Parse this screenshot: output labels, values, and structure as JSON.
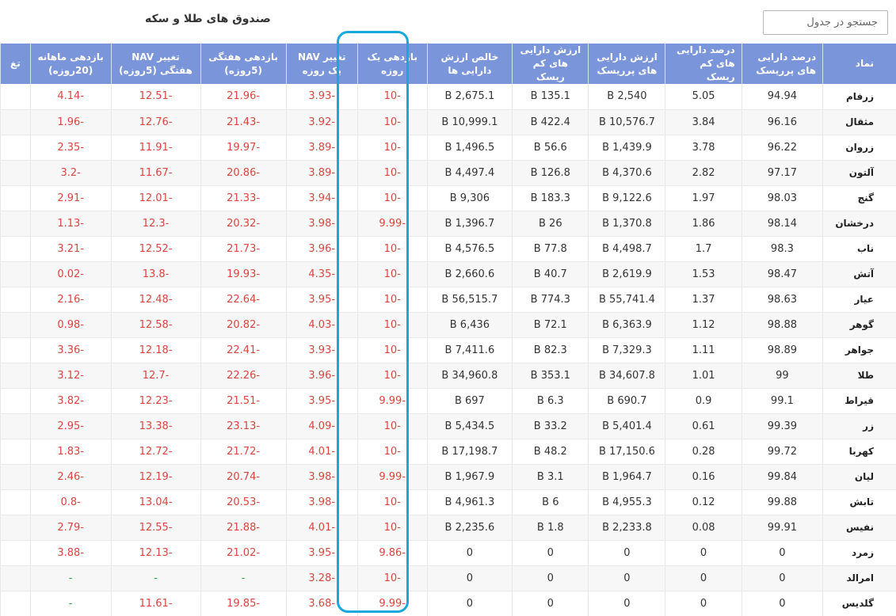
{
  "title": "صندوق های طلا و سکه",
  "search": {
    "placeholder": "جستجو در جدول"
  },
  "columns": [
    "نماد",
    "درصد دارایی های پرریسک",
    "درصد دارایی های کم ریسک",
    "ارزش دارایی های پرریسک",
    "ارزش دارایی های کم ریسک",
    "خالص ارزش دارایی ها",
    "بازدهی یک روزه",
    "تغییر NAV یک روزه",
    "بازدهی هفتگی (5روزه)",
    "تغییر NAV هفتگی (5روزه)",
    "بازدهی ماهانه (20روزه)",
    "تغ"
  ],
  "rows": [
    [
      "زرفام",
      "94.94",
      "5.05",
      "2,540 B",
      "135.1 B",
      "2,675.1 B",
      "-10",
      "-3.93",
      "-21.96",
      "-12.51",
      "-4.14",
      ""
    ],
    [
      "مثقال",
      "96.16",
      "3.84",
      "10,576.7 B",
      "422.4 B",
      "10,999.1 B",
      "-10",
      "-3.92",
      "-21.43",
      "-12.76",
      "-1.96",
      ""
    ],
    [
      "زروان",
      "96.22",
      "3.78",
      "1,439.9 B",
      "56.6 B",
      "1,496.5 B",
      "-10",
      "-3.89",
      "-19.97",
      "-11.91",
      "-2.35",
      ""
    ],
    [
      "آلتون",
      "97.17",
      "2.82",
      "4,370.6 B",
      "126.8 B",
      "4,497.4 B",
      "-10",
      "-3.89",
      "-20.86",
      "-11.67",
      "-3.2",
      ""
    ],
    [
      "گنج",
      "98.03",
      "1.97",
      "9,122.6 B",
      "183.3 B",
      "9,306 B",
      "-10",
      "-3.94",
      "-21.33",
      "-12.01",
      "-2.91",
      ""
    ],
    [
      "درخشان",
      "98.14",
      "1.86",
      "1,370.8 B",
      "26 B",
      "1,396.7 B",
      "-9.99",
      "-3.98",
      "-20.32",
      "-12.3",
      "-1.13",
      ""
    ],
    [
      "ناب",
      "98.3",
      "1.7",
      "4,498.7 B",
      "77.8 B",
      "4,576.5 B",
      "-10",
      "-3.96",
      "-21.73",
      "-12.52",
      "-3.21",
      ""
    ],
    [
      "آتش",
      "98.47",
      "1.53",
      "2,619.9 B",
      "40.7 B",
      "2,660.6 B",
      "-10",
      "-4.35",
      "-19.93",
      "-13.8",
      "-0.02",
      ""
    ],
    [
      "عیار",
      "98.63",
      "1.37",
      "55,741.4 B",
      "774.3 B",
      "56,515.7 B",
      "-10",
      "-3.95",
      "-22.64",
      "-12.48",
      "-2.16",
      ""
    ],
    [
      "گوهر",
      "98.88",
      "1.12",
      "6,363.9 B",
      "72.1 B",
      "6,436 B",
      "-10",
      "-4.03",
      "-20.82",
      "-12.58",
      "-0.98",
      ""
    ],
    [
      "جواهر",
      "98.89",
      "1.11",
      "7,329.3 B",
      "82.3 B",
      "7,411.6 B",
      "-10",
      "-3.93",
      "-22.41",
      "-12.18",
      "-3.36",
      ""
    ],
    [
      "طلا",
      "99",
      "1.01",
      "34,607.8 B",
      "353.1 B",
      "34,960.8 B",
      "-10",
      "-3.96",
      "-22.26",
      "-12.7",
      "-3.12",
      ""
    ],
    [
      "قیراط",
      "99.1",
      "0.9",
      "690.7 B",
      "6.3 B",
      "697 B",
      "-9.99",
      "-3.95",
      "-21.51",
      "-12.23",
      "-3.82",
      ""
    ],
    [
      "زر",
      "99.39",
      "0.61",
      "5,401.4 B",
      "33.2 B",
      "5,434.5 B",
      "-10",
      "-4.09",
      "-23.13",
      "-13.38",
      "-2.95",
      ""
    ],
    [
      "کهربا",
      "99.72",
      "0.28",
      "17,150.6 B",
      "48.2 B",
      "17,198.7 B",
      "-10",
      "-4.01",
      "-21.72",
      "-12.72",
      "-1.83",
      ""
    ],
    [
      "لیان",
      "99.84",
      "0.16",
      "1,964.7 B",
      "3.1 B",
      "1,967.9 B",
      "-9.99",
      "-3.98",
      "-20.74",
      "-12.19",
      "-2.46",
      ""
    ],
    [
      "تابش",
      "99.88",
      "0.12",
      "4,955.3 B",
      "6 B",
      "4,961.3 B",
      "-10",
      "-3.98",
      "-20.53",
      "-13.04",
      "-0.8",
      ""
    ],
    [
      "نفیس",
      "99.91",
      "0.08",
      "2,233.8 B",
      "1.8 B",
      "2,235.6 B",
      "-10",
      "-4.01",
      "-21.88",
      "-12.55",
      "-2.79",
      ""
    ],
    [
      "زمرد",
      "0",
      "0",
      "0",
      "0",
      "0",
      "-9.86",
      "-3.95",
      "-21.02",
      "-12.13",
      "-3.88",
      ""
    ],
    [
      "امرالد",
      "0",
      "0",
      "0",
      "0",
      "0",
      "-10",
      "-3.28",
      "-",
      "-",
      "-",
      ""
    ],
    [
      "گلدیس",
      "0",
      "0",
      "0",
      "0",
      "0",
      "-9.99",
      "-3.68",
      "-19.85",
      "-11.61",
      "-",
      ""
    ]
  ]
}
